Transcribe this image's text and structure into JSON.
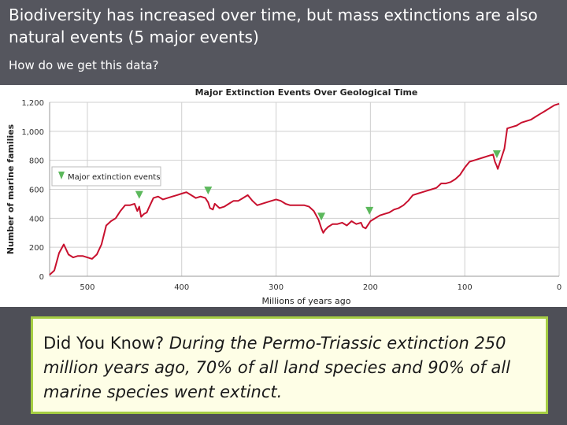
{
  "slide": {
    "title": "Biodiversity has increased over time, but mass extinctions are also natural events (5 major events)",
    "subtitle": "How do we get this data?",
    "callout_lead": "Did You Know?",
    "callout_body": "During the Permo-Triassic extinction 250 million years ago, 70% of all land species and 90% of all marine species went extinct."
  },
  "colors": {
    "line": "#c8102e",
    "marker": "#5cb85c",
    "grid": "#cfcfcf",
    "callout_border": "#a5cd43"
  },
  "chart_data": {
    "type": "line",
    "title": "Major Extinction Events Over Geological Time",
    "xlabel": "Millions of years ago",
    "ylabel": "Number of marine families",
    "xlim": [
      540,
      0
    ],
    "ylim": [
      0,
      1200
    ],
    "xticks": [
      500,
      400,
      300,
      200,
      100,
      0
    ],
    "yticks": [
      0,
      200,
      400,
      600,
      800,
      1000,
      1200
    ],
    "ytick_labels": [
      "0",
      "200",
      "400",
      "600",
      "800",
      "1,000",
      "1,200"
    ],
    "legend": "Major extinction events",
    "legend_position": "upper-left",
    "series": [
      {
        "name": "Marine families",
        "x": [
          540,
          535,
          530,
          525,
          520,
          515,
          510,
          505,
          500,
          495,
          490,
          485,
          480,
          475,
          470,
          465,
          460,
          455,
          450,
          447,
          445,
          443,
          440,
          437,
          435,
          430,
          425,
          420,
          415,
          410,
          405,
          400,
          395,
          390,
          385,
          380,
          375,
          372,
          370,
          367,
          365,
          360,
          355,
          350,
          345,
          340,
          335,
          330,
          325,
          320,
          315,
          310,
          305,
          300,
          295,
          290,
          285,
          280,
          275,
          270,
          265,
          260,
          255,
          252,
          250,
          248,
          245,
          240,
          235,
          230,
          225,
          220,
          215,
          210,
          208,
          205,
          202,
          200,
          195,
          190,
          185,
          180,
          175,
          170,
          165,
          160,
          155,
          150,
          145,
          140,
          135,
          130,
          125,
          120,
          115,
          110,
          105,
          100,
          95,
          90,
          85,
          80,
          75,
          70,
          68,
          66,
          65,
          63,
          61,
          58,
          55,
          50,
          45,
          40,
          35,
          30,
          25,
          20,
          15,
          10,
          5,
          0
        ],
        "y": [
          10,
          40,
          160,
          220,
          150,
          130,
          140,
          140,
          130,
          120,
          150,
          220,
          350,
          380,
          400,
          450,
          490,
          490,
          500,
          450,
          480,
          410,
          430,
          440,
          470,
          540,
          550,
          530,
          540,
          550,
          560,
          570,
          580,
          560,
          540,
          550,
          540,
          510,
          470,
          460,
          500,
          470,
          480,
          500,
          520,
          520,
          540,
          560,
          520,
          490,
          500,
          510,
          520,
          530,
          520,
          500,
          490,
          490,
          490,
          490,
          480,
          450,
          390,
          330,
          300,
          320,
          340,
          360,
          360,
          370,
          350,
          380,
          360,
          370,
          340,
          330,
          360,
          380,
          400,
          420,
          430,
          440,
          460,
          470,
          490,
          520,
          560,
          570,
          580,
          590,
          600,
          610,
          640,
          640,
          650,
          670,
          700,
          750,
          790,
          800,
          810,
          820,
          830,
          840,
          790,
          760,
          740,
          780,
          820,
          880,
          1020,
          1030,
          1040,
          1060,
          1070,
          1080,
          1100,
          1120,
          1140,
          1160,
          1180,
          1190
        ]
      }
    ],
    "extinction_events_mya": [
      445,
      372,
      252,
      201,
      66
    ]
  }
}
